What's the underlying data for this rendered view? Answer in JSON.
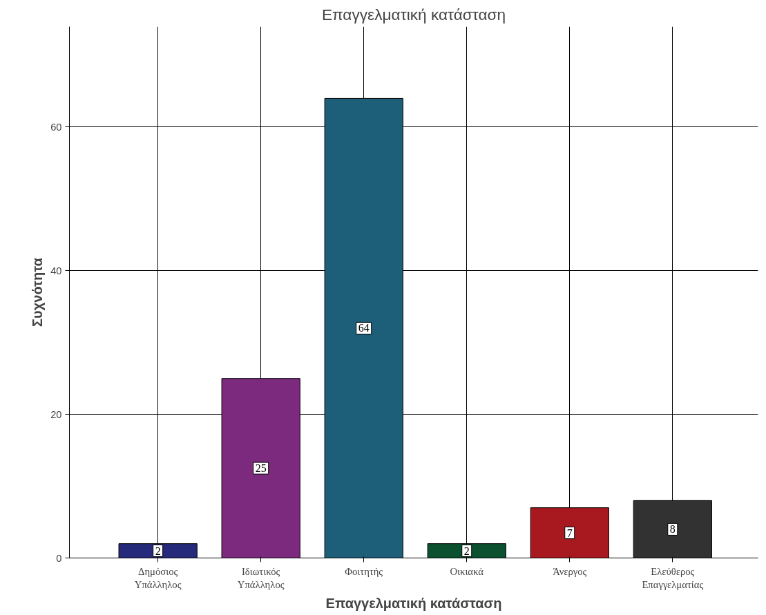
{
  "chart_data": {
    "type": "bar",
    "title": "Επαγγελματική κατάσταση",
    "xlabel": "Επαγγελματική κατάσταση",
    "ylabel": "Συχνότητα",
    "categories": [
      "Δημόσιος\nΥπάλληλος",
      "Ιδιωτικός\nΥπάλληλος",
      "Φοιτητής",
      "Οικιακά",
      "Άνεργος",
      "Ελεύθερος\nΕπαγγελματίας"
    ],
    "values": [
      2,
      25,
      64,
      2,
      7,
      8
    ],
    "colors": [
      "#262a7a",
      "#7b2a7d",
      "#1d5e78",
      "#0b5130",
      "#a8191f",
      "#323232"
    ],
    "ylim": [
      0,
      74
    ],
    "yticks": [
      0,
      20,
      40,
      60
    ],
    "grid": true,
    "data_labels": true
  }
}
